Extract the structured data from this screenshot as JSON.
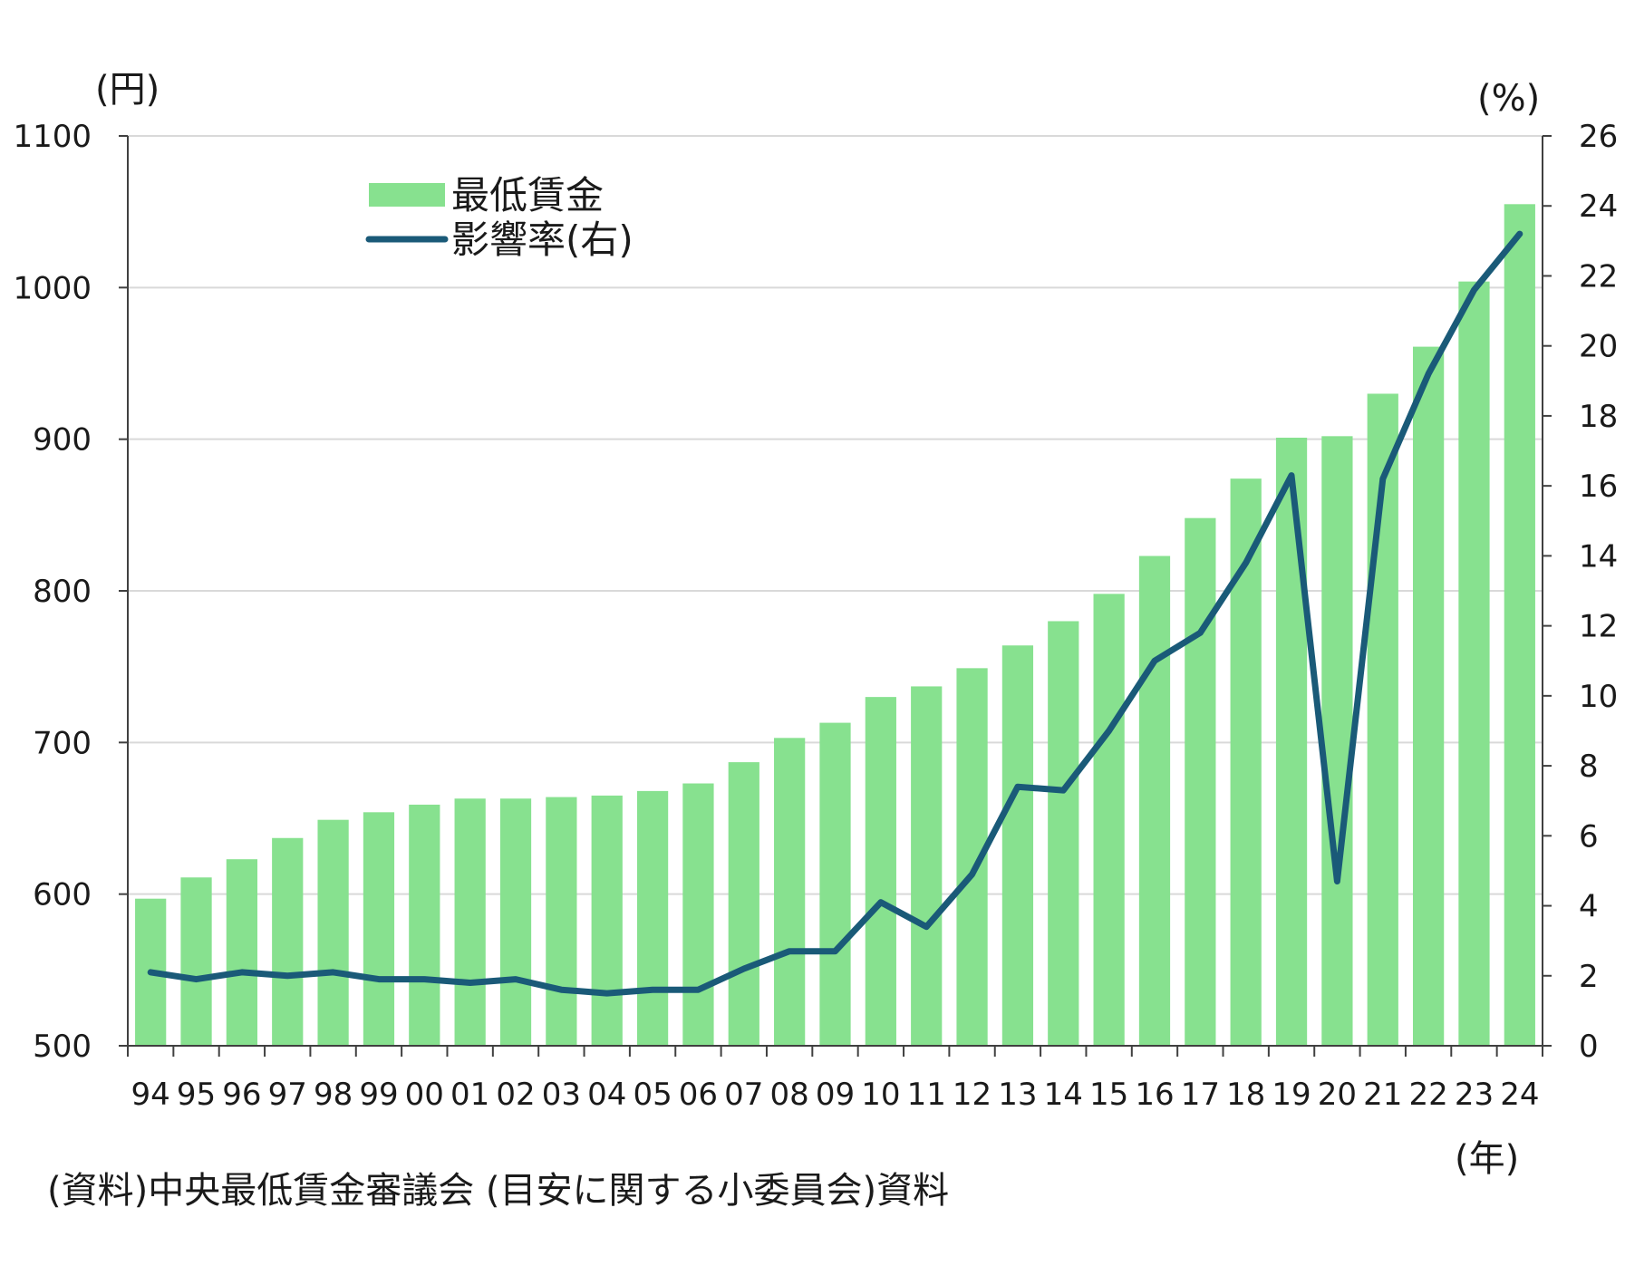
{
  "chart_data": {
    "type": "bar",
    "categories": [
      "94",
      "95",
      "96",
      "97",
      "98",
      "99",
      "00",
      "01",
      "02",
      "03",
      "04",
      "05",
      "06",
      "07",
      "08",
      "09",
      "10",
      "11",
      "12",
      "13",
      "14",
      "15",
      "16",
      "17",
      "18",
      "19",
      "20",
      "21",
      "22",
      "23",
      "24"
    ],
    "series": [
      {
        "name": "最低賃金",
        "type": "bar",
        "axis": "left",
        "color": "#87e18f",
        "values": [
          597,
          611,
          623,
          637,
          649,
          654,
          659,
          663,
          663,
          664,
          665,
          668,
          673,
          687,
          703,
          713,
          730,
          737,
          749,
          764,
          780,
          798,
          823,
          848,
          874,
          901,
          902,
          930,
          961,
          1004,
          1055
        ]
      },
      {
        "name": "影響率(右)",
        "type": "line",
        "axis": "right",
        "color": "#1a5a78",
        "values": [
          2.1,
          1.9,
          2.1,
          2.0,
          2.1,
          1.9,
          1.9,
          1.8,
          1.9,
          1.6,
          1.5,
          1.6,
          1.6,
          2.2,
          2.7,
          2.7,
          4.1,
          3.4,
          4.9,
          7.4,
          7.3,
          9.0,
          11.0,
          11.8,
          13.8,
          16.3,
          4.7,
          16.2,
          19.2,
          21.6,
          23.2
        ]
      }
    ],
    "left_axis": {
      "unit": "(円)",
      "ylim": [
        500,
        1100
      ],
      "ticks": [
        "500",
        "600",
        "700",
        "800",
        "900",
        "1000",
        "1100"
      ]
    },
    "right_axis": {
      "unit": "(%)",
      "ylim": [
        0,
        26
      ],
      "ticks": [
        "0",
        "2",
        "4",
        "6",
        "8",
        "10",
        "12",
        "14",
        "16",
        "18",
        "20",
        "22",
        "24",
        "26"
      ]
    },
    "x_axis": {
      "unit": "(年)"
    },
    "grid": true,
    "legend_position": "top-left",
    "source": "(資料)中央最低賃金審議会 (目安に関する小委員会)資料"
  }
}
